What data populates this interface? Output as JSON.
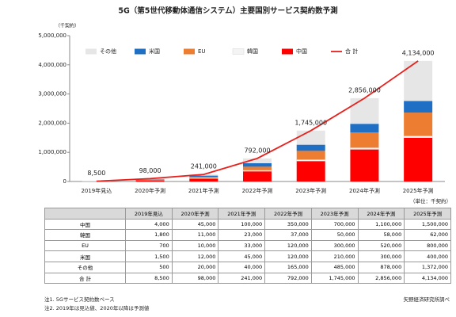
{
  "chart_data": {
    "type": "stacked_bar",
    "title": "5G（第5世代移動体通信システム）主要国別サービス契約数予測",
    "y_unit": "（千契約）",
    "categories": [
      "2019年見込",
      "2020年予測",
      "2021年予測",
      "2022年予測",
      "2023年予測",
      "2024年予測",
      "2025年予測"
    ],
    "series": [
      {
        "name": "中国",
        "color": "#ff0000",
        "values": [
          4000,
          45000,
          100000,
          350000,
          700000,
          1100000,
          1500000
        ],
        "value_labels": [
          "4,000",
          "45,000",
          "100,000",
          "350,000",
          "700,000",
          "1,100,000",
          "1,500,000"
        ]
      },
      {
        "name": "韓国",
        "color": "#f4f4f4",
        "values": [
          1800,
          11000,
          23000,
          37000,
          50000,
          58000,
          62000
        ],
        "value_labels": [
          "1,800",
          "11,000",
          "23,000",
          "37,000",
          "50,000",
          "58,000",
          "62,000"
        ]
      },
      {
        "name": "EU",
        "color": "#ed7d31",
        "values": [
          700,
          10000,
          33000,
          120000,
          300000,
          520000,
          800000
        ],
        "value_labels": [
          "700",
          "10,000",
          "33,000",
          "120,000",
          "300,000",
          "520,000",
          "800,000"
        ]
      },
      {
        "name": "米国",
        "color": "#1f6fc5",
        "values": [
          1500,
          12000,
          45000,
          120000,
          210000,
          300000,
          400000
        ],
        "value_labels": [
          "1,500",
          "12,000",
          "45,000",
          "120,000",
          "210,000",
          "300,000",
          "400,000"
        ]
      },
      {
        "name": "その他",
        "color": "#e6e6e6",
        "values": [
          500,
          20000,
          40000,
          165000,
          485000,
          878000,
          1372000
        ],
        "value_labels": [
          "500",
          "20,000",
          "40,000",
          "165,000",
          "485,000",
          "878,000",
          "1,372,000"
        ]
      },
      {
        "name": "合 計",
        "type": "line",
        "color": "#e8201c",
        "values": [
          8500,
          98000,
          241000,
          792000,
          1745000,
          2856000,
          4134000
        ],
        "value_labels": [
          "8,500",
          "98,000",
          "241,000",
          "792,000",
          "1,745,000",
          "2,856,000",
          "4,134,000"
        ]
      }
    ],
    "ylim": [
      0,
      5000000
    ],
    "yticks": [
      {
        "value": 0,
        "label": "0"
      },
      {
        "value": 1000000,
        "label": "1,000,000"
      },
      {
        "value": 2000000,
        "label": "2,000,000"
      },
      {
        "value": 3000000,
        "label": "3,000,000"
      },
      {
        "value": 4000000,
        "label": "4,000,000"
      },
      {
        "value": 5000000,
        "label": "5,000,000"
      }
    ],
    "table_unit": "（単位：千契約）",
    "notes": [
      "注1. 5Gサービス契約数ベース",
      "注2. 2019年は見込値、2020年以降は予測値"
    ],
    "source": "矢野経済研究所調べ"
  }
}
